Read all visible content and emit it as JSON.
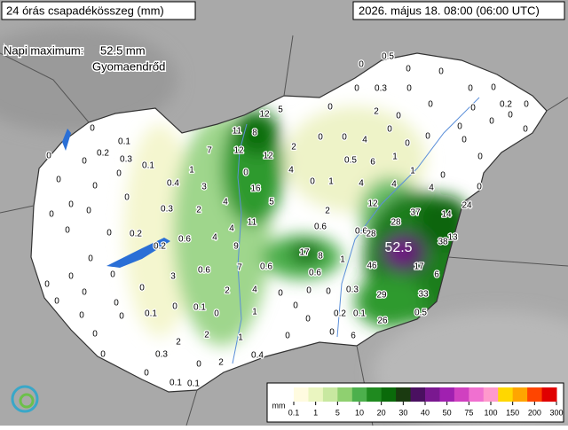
{
  "header": {
    "title": "24 órás csapadékösszeg (mm)",
    "datetime": "2026. május 18. 08:00 (06:00 UTC)"
  },
  "maximum": {
    "label": "Napi maximum:",
    "value": "52.5 mm",
    "place": "Gyomaendrőd",
    "map_value": 52.5
  },
  "stations": [
    0.5,
    0,
    0.3,
    0,
    0,
    0,
    0,
    0,
    0,
    0.2,
    0,
    0,
    0,
    0,
    0,
    0,
    2,
    0,
    0,
    0,
    0,
    0,
    12,
    5,
    11,
    8,
    0,
    0,
    0,
    4,
    2,
    12,
    12,
    7,
    0.5,
    6,
    1,
    0,
    1,
    0,
    0,
    1,
    4,
    0,
    3,
    0.4,
    16,
    0,
    1,
    4,
    4,
    4,
    0,
    4,
    5,
    2,
    12,
    28,
    37,
    14,
    24,
    0.3,
    2,
    11,
    4,
    0.6,
    0.6,
    0.2,
    0.6,
    4,
    13,
    38,
    9,
    17,
    8,
    1,
    28,
    46,
    17,
    0.6,
    7,
    0.6,
    0.6,
    6,
    3,
    2,
    4,
    0,
    0,
    0,
    0.3,
    29,
    33,
    0,
    0.1,
    0,
    1,
    0,
    0.2,
    0.1,
    0.5,
    0.1,
    0,
    2,
    1,
    0,
    0,
    6,
    26,
    2,
    0.3,
    2,
    0.4,
    0,
    0,
    0.1,
    0.1,
    0,
    0.1,
    0.2,
    0.3,
    0.1,
    0,
    0,
    0,
    0,
    0,
    0,
    0,
    0,
    0,
    0,
    0,
    0.2,
    0,
    0,
    0,
    0,
    0,
    0,
    0,
    0,
    0,
    0,
    0,
    0
  ],
  "legend": {
    "unit": "mm",
    "ticks": [
      0.1,
      1,
      5,
      10,
      20,
      30,
      40,
      50,
      75,
      100,
      150,
      200,
      300
    ]
  }
}
